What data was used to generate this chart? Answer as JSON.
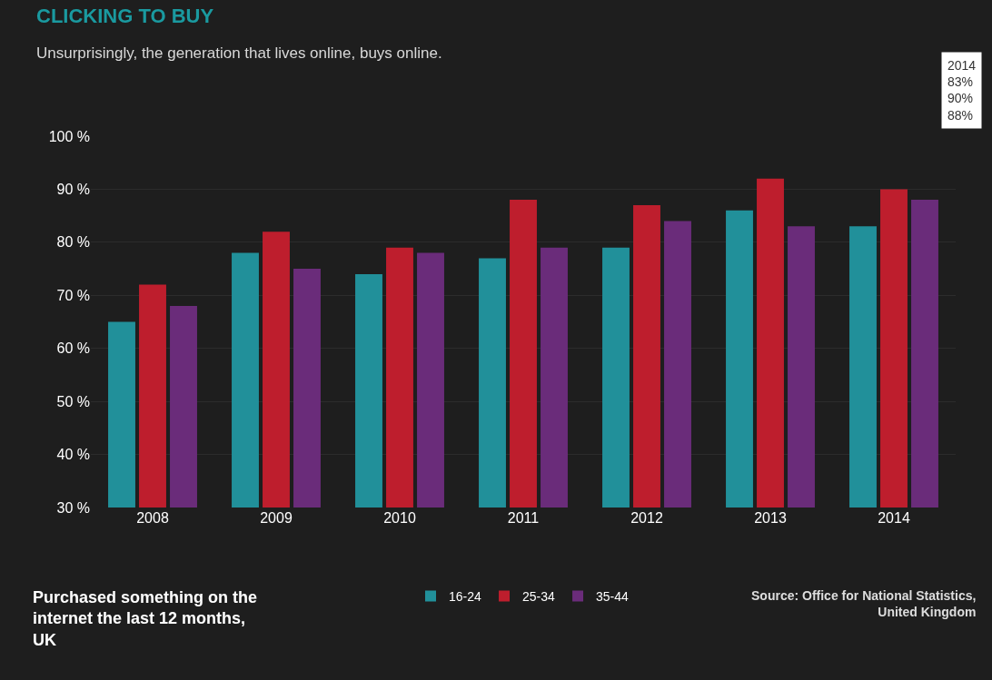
{
  "chart_data": {
    "type": "bar",
    "title": "CLICKING TO BUY",
    "subtitle": "Unsurprisingly, the generation that lives online, buys online.",
    "categories": [
      "2008",
      "2009",
      "2010",
      "2011",
      "2012",
      "2013",
      "2014"
    ],
    "series": [
      {
        "name": "16-24",
        "color": "#21909a",
        "values": [
          65,
          78,
          74,
          77,
          79,
          86,
          83
        ]
      },
      {
        "name": "25-34",
        "color": "#be1e2d",
        "values": [
          72,
          82,
          79,
          88,
          87,
          92,
          90
        ]
      },
      {
        "name": "35-44",
        "color": "#6a2c7a",
        "values": [
          68,
          75,
          78,
          79,
          84,
          83,
          88
        ]
      }
    ],
    "ylim": [
      30,
      100
    ],
    "yticks": [
      {
        "value": 30,
        "label": "30 %"
      },
      {
        "value": 40,
        "label": "40 %"
      },
      {
        "value": 50,
        "label": "50 %"
      },
      {
        "value": 60,
        "label": "60 %"
      },
      {
        "value": 70,
        "label": "70 %"
      },
      {
        "value": 80,
        "label": "80 %"
      },
      {
        "value": 90,
        "label": "90 %"
      },
      {
        "value": 100,
        "label": "100 %"
      }
    ],
    "grid": "y",
    "legend": "bottom",
    "annotations": [
      "Purchased something on the\ninternet the last 12 months,\nUK",
      "Source: Office for National Statistics,\nUnited Kingdom",
      "2014\n83%\n90%\n88%"
    ]
  }
}
